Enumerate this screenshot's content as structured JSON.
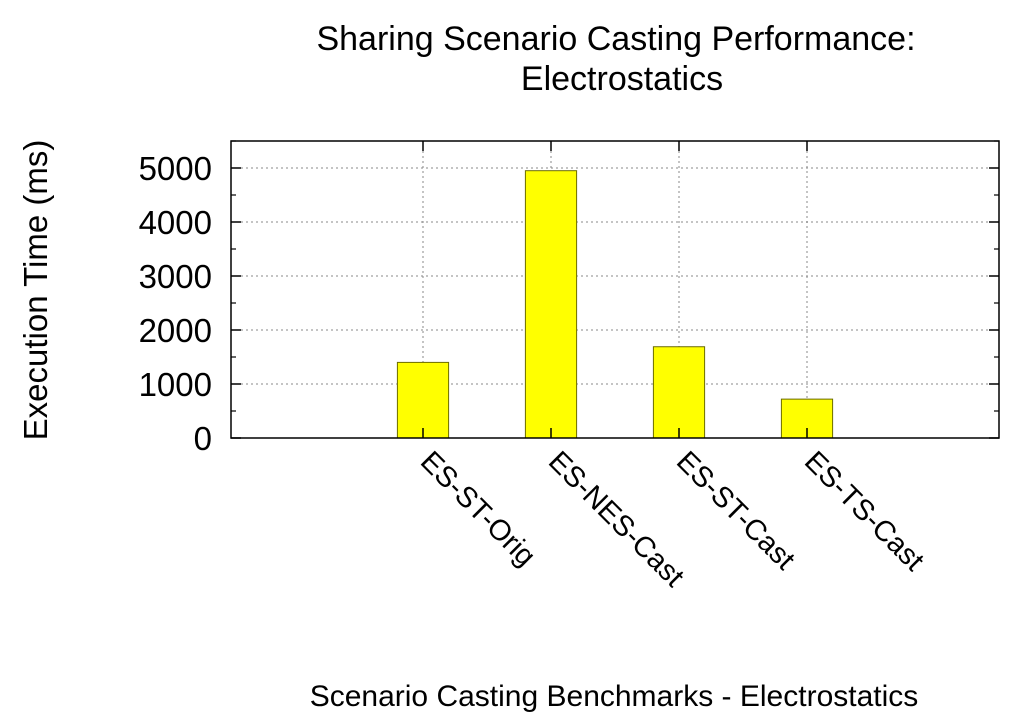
{
  "chart_data": {
    "type": "bar",
    "title_lines": [
      "Sharing Scenario Casting Performance:",
      "Electrostatics"
    ],
    "xlabel": "Scenario Casting Benchmarks - Electrostatics",
    "ylabel": "Execution Time (ms)",
    "categories": [
      "ES-ST-Orig",
      "ES-NES-Cast",
      "ES-ST-Cast",
      "ES-TS-Cast"
    ],
    "values": [
      1400,
      4950,
      1690,
      720
    ],
    "ylim": [
      0,
      5500
    ],
    "xlim": [
      -1.5,
      4.5
    ],
    "yticks": [
      "0",
      "1000",
      "2000",
      "3000",
      "4000",
      "5000"
    ],
    "ytick_values": [
      0,
      1000,
      2000,
      3000,
      4000,
      5000
    ],
    "grid": true,
    "bar_color": "#ffff00",
    "bar_edge_color": "#6b6b00"
  }
}
